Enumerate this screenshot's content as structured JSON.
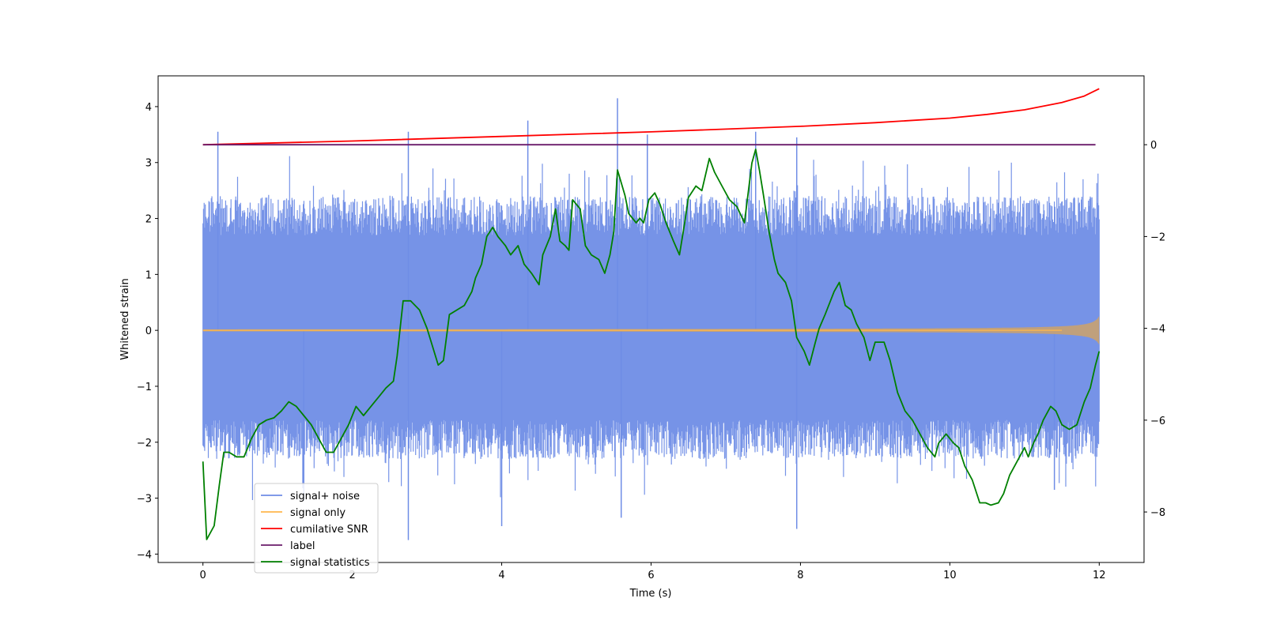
{
  "chart_data": {
    "type": "line",
    "xlabel": "Time (s)",
    "ylabel": "Whitened strain",
    "xlim": [
      -0.6,
      12.6
    ],
    "ylim": [
      -4.15,
      4.55
    ],
    "y2lim": [
      -9.1,
      1.5
    ],
    "xticks": [
      {
        "value": 0,
        "label": "0"
      },
      {
        "value": 2,
        "label": "2"
      },
      {
        "value": 4,
        "label": "4"
      },
      {
        "value": 6,
        "label": "6"
      },
      {
        "value": 8,
        "label": "8"
      },
      {
        "value": 10,
        "label": "10"
      },
      {
        "value": 12,
        "label": "12"
      }
    ],
    "yticks": [
      {
        "value": -4,
        "label": "−4"
      },
      {
        "value": -3,
        "label": "−3"
      },
      {
        "value": -2,
        "label": "−2"
      },
      {
        "value": -1,
        "label": "−1"
      },
      {
        "value": 0,
        "label": "0"
      },
      {
        "value": 1,
        "label": "1"
      },
      {
        "value": 2,
        "label": "2"
      },
      {
        "value": 3,
        "label": "3"
      },
      {
        "value": 4,
        "label": "4"
      }
    ],
    "y2ticks": [
      {
        "value": -8,
        "label": "−8"
      },
      {
        "value": -6,
        "label": "−6"
      },
      {
        "value": -4,
        "label": "−4"
      },
      {
        "value": -2,
        "label": "−2"
      },
      {
        "value": 0,
        "label": "0"
      }
    ],
    "legend_position": "lower-left",
    "series": [
      {
        "name": "signal+ noise",
        "axis": "left",
        "color": "#6f8de6",
        "style": "noise",
        "x_range": [
          0,
          12
        ],
        "band": [
          -1.6,
          1.7
        ],
        "peaks": [
          [
            0.2,
            3.55
          ],
          [
            5.55,
            4.15
          ],
          [
            4.35,
            3.75
          ],
          [
            2.75,
            3.55
          ],
          [
            7.4,
            3.55
          ],
          [
            5.95,
            3.5
          ],
          [
            7.95,
            3.45
          ],
          [
            2.75,
            -3.75
          ],
          [
            5.6,
            -3.35
          ],
          [
            7.95,
            -3.55
          ],
          [
            4.0,
            -3.5
          ],
          [
            1.35,
            -3.05
          ],
          [
            11.4,
            -2.85
          ]
        ]
      },
      {
        "name": "signal only",
        "axis": "left",
        "color": "#ffb74d",
        "style": "chirp",
        "x_range": [
          0,
          12
        ],
        "final_amplitude": 0.25
      },
      {
        "name": "cumilative SNR",
        "axis": "right",
        "color": "#ff0000",
        "x": [
          0,
          2,
          4,
          6,
          8,
          9,
          10,
          10.5,
          11,
          11.5,
          11.8,
          12
        ],
        "values": [
          0.0,
          0.08,
          0.18,
          0.28,
          0.4,
          0.48,
          0.58,
          0.66,
          0.76,
          0.92,
          1.06,
          1.22
        ]
      },
      {
        "name": "label",
        "axis": "right",
        "color": "#6a1b6a",
        "x": [
          0,
          11.95
        ],
        "values": [
          0,
          0
        ]
      },
      {
        "name": "signal statistics",
        "axis": "right",
        "color": "#008000",
        "x": [
          0.0,
          0.05,
          0.15,
          0.22,
          0.28,
          0.35,
          0.45,
          0.55,
          0.65,
          0.75,
          0.85,
          0.95,
          1.05,
          1.15,
          1.25,
          1.35,
          1.45,
          1.55,
          1.65,
          1.75,
          1.85,
          1.95,
          2.05,
          2.15,
          2.25,
          2.35,
          2.45,
          2.55,
          2.6,
          2.68,
          2.78,
          2.9,
          3.0,
          3.15,
          3.22,
          3.3,
          3.4,
          3.5,
          3.6,
          3.65,
          3.73,
          3.8,
          3.88,
          3.95,
          4.05,
          4.12,
          4.22,
          4.3,
          4.4,
          4.5,
          4.55,
          4.65,
          4.72,
          4.78,
          4.85,
          4.9,
          4.95,
          5.05,
          5.12,
          5.2,
          5.3,
          5.38,
          5.45,
          5.5,
          5.55,
          5.65,
          5.7,
          5.8,
          5.85,
          5.9,
          5.97,
          6.05,
          6.12,
          6.2,
          6.3,
          6.38,
          6.45,
          6.5,
          6.6,
          6.68,
          6.78,
          6.85,
          6.95,
          7.05,
          7.15,
          7.25,
          7.35,
          7.4,
          7.45,
          7.5,
          7.58,
          7.65,
          7.7,
          7.8,
          7.88,
          7.95,
          8.05,
          8.12,
          8.2,
          8.25,
          8.33,
          8.45,
          8.52,
          8.6,
          8.68,
          8.75,
          8.85,
          8.93,
          9.0,
          9.07,
          9.12,
          9.2,
          9.3,
          9.4,
          9.5,
          9.6,
          9.7,
          9.8,
          9.85,
          9.95,
          10.05,
          10.12,
          10.2,
          10.3,
          10.4,
          10.48,
          10.55,
          10.65,
          10.72,
          10.8,
          10.9,
          11.0,
          11.05,
          11.12,
          11.18,
          11.25,
          11.35,
          11.42,
          11.5,
          11.6,
          11.7,
          11.8,
          11.88,
          11.95,
          12.0
        ],
        "values": [
          -6.9,
          -8.6,
          -8.3,
          -7.4,
          -6.7,
          -6.7,
          -6.8,
          -6.8,
          -6.4,
          -6.1,
          -6.0,
          -5.95,
          -5.8,
          -5.6,
          -5.7,
          -5.9,
          -6.1,
          -6.4,
          -6.7,
          -6.7,
          -6.4,
          -6.1,
          -5.7,
          -5.9,
          -5.7,
          -5.5,
          -5.3,
          -5.15,
          -4.6,
          -3.4,
          -3.4,
          -3.6,
          -4.0,
          -4.8,
          -4.7,
          -3.7,
          -3.6,
          -3.5,
          -3.2,
          -2.9,
          -2.6,
          -2.0,
          -1.8,
          -2.0,
          -2.2,
          -2.4,
          -2.2,
          -2.6,
          -2.8,
          -3.05,
          -2.4,
          -2.0,
          -1.4,
          -2.1,
          -2.2,
          -2.3,
          -1.2,
          -1.4,
          -2.2,
          -2.4,
          -2.5,
          -2.8,
          -2.4,
          -1.9,
          -0.55,
          -1.1,
          -1.5,
          -1.7,
          -1.6,
          -1.7,
          -1.2,
          -1.05,
          -1.3,
          -1.7,
          -2.1,
          -2.4,
          -1.7,
          -1.15,
          -0.9,
          -1.0,
          -0.3,
          -0.6,
          -0.9,
          -1.2,
          -1.35,
          -1.7,
          -0.4,
          -0.1,
          -0.55,
          -1.05,
          -1.9,
          -2.5,
          -2.8,
          -3.0,
          -3.4,
          -4.2,
          -4.5,
          -4.8,
          -4.3,
          -4.0,
          -3.7,
          -3.2,
          -3.0,
          -3.5,
          -3.6,
          -3.9,
          -4.2,
          -4.7,
          -4.3,
          -4.3,
          -4.3,
          -4.7,
          -5.4,
          -5.8,
          -6.0,
          -6.3,
          -6.6,
          -6.8,
          -6.5,
          -6.3,
          -6.5,
          -6.6,
          -7.0,
          -7.3,
          -7.8,
          -7.8,
          -7.85,
          -7.8,
          -7.6,
          -7.2,
          -6.9,
          -6.6,
          -6.8,
          -6.5,
          -6.3,
          -6.0,
          -5.7,
          -5.8,
          -6.1,
          -6.2,
          -6.1,
          -5.6,
          -5.3,
          -4.8,
          -4.5
        ]
      }
    ]
  }
}
